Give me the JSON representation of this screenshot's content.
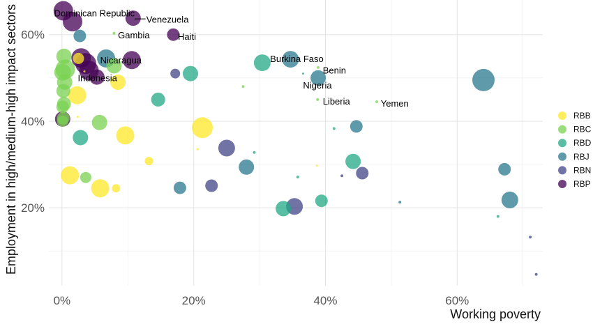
{
  "chart_data": {
    "type": "scatter",
    "title": "",
    "xlabel": "Working poverty",
    "ylabel": "Employment in high/medium-high impact sectors",
    "xlim": [
      -2,
      73
    ],
    "ylim": [
      2,
      68
    ],
    "x_ticks": [
      {
        "value": 0,
        "label": "0%"
      },
      {
        "value": 20,
        "label": "20%"
      },
      {
        "value": 40,
        "label": "40%"
      },
      {
        "value": 60,
        "label": "60%"
      }
    ],
    "y_ticks": [
      {
        "value": 20,
        "label": "20%"
      },
      {
        "value": 40,
        "label": "40%"
      },
      {
        "value": 60,
        "label": "60%"
      }
    ],
    "grid": true,
    "legend_position": "right",
    "series": [
      {
        "name": "RBB",
        "color": "#FDE725",
        "points": [
          {
            "x": 2.5,
            "y": 54.5,
            "size": 8
          },
          {
            "x": 8.5,
            "y": 49,
            "size": 11
          },
          {
            "x": 2.3,
            "y": 46,
            "size": 13
          },
          {
            "x": 21.3,
            "y": 38.5,
            "size": 15
          },
          {
            "x": 9.6,
            "y": 36.7,
            "size": 13
          },
          {
            "x": 13.2,
            "y": 30.8,
            "size": 6
          },
          {
            "x": 1.2,
            "y": 27.5,
            "size": 13
          },
          {
            "x": 5.8,
            "y": 24.5,
            "size": 13
          },
          {
            "x": 8.2,
            "y": 24.5,
            "size": 6
          },
          {
            "x": 2.4,
            "y": 41,
            "size": 1.5
          },
          {
            "x": 20.6,
            "y": 33.5,
            "size": 1.5
          },
          {
            "x": 38.7,
            "y": 29.7,
            "size": 1.5
          },
          {
            "x": 3.4,
            "y": 51.5,
            "size": 1.5
          }
        ]
      },
      {
        "name": "RBC",
        "color": "#7AD151",
        "points": [
          {
            "x": 0.3,
            "y": 55,
            "size": 11
          },
          {
            "x": 0.5,
            "y": 52,
            "size": 14
          },
          {
            "x": 0.1,
            "y": 51.3,
            "size": 12
          },
          {
            "x": 0.4,
            "y": 49,
            "size": 11
          },
          {
            "x": 0.2,
            "y": 47,
            "size": 10
          },
          {
            "x": 0.3,
            "y": 44,
            "size": 10
          },
          {
            "x": 0.1,
            "y": 43.3,
            "size": 9
          },
          {
            "x": 0.2,
            "y": 40.7,
            "size": 9
          },
          {
            "x": 0.1,
            "y": 40,
            "size": 8
          },
          {
            "x": 3.6,
            "y": 27,
            "size": 8
          },
          {
            "x": 5.7,
            "y": 39.7,
            "size": 11
          },
          {
            "x": 7.9,
            "y": 52.8,
            "size": 11
          },
          {
            "x": 7.9,
            "y": 60.3,
            "size": 2
          },
          {
            "x": 27.5,
            "y": 48,
            "size": 2
          },
          {
            "x": 38.8,
            "y": 45,
            "size": 2
          },
          {
            "x": 38.9,
            "y": 52.4,
            "size": 2
          },
          {
            "x": 47.8,
            "y": 44.5,
            "size": 2
          }
        ]
      },
      {
        "name": "RBD",
        "color": "#22A884",
        "points": [
          {
            "x": 30.4,
            "y": 53.5,
            "size": 12
          },
          {
            "x": 19.5,
            "y": 51,
            "size": 11
          },
          {
            "x": 14.6,
            "y": 45,
            "size": 10
          },
          {
            "x": 2.8,
            "y": 36.2,
            "size": 11
          },
          {
            "x": 44.2,
            "y": 30.7,
            "size": 11
          },
          {
            "x": 33.6,
            "y": 19.8,
            "size": 11
          },
          {
            "x": 39.4,
            "y": 21.6,
            "size": 9
          },
          {
            "x": 36.6,
            "y": 51,
            "size": 1.5
          },
          {
            "x": 29.2,
            "y": 32.8,
            "size": 2
          },
          {
            "x": 41.3,
            "y": 38.3,
            "size": 2
          },
          {
            "x": 35.8,
            "y": 27.1,
            "size": 2
          },
          {
            "x": 66.2,
            "y": 18,
            "size": 2
          }
        ]
      },
      {
        "name": "RBJ",
        "color": "#2A788E",
        "points": [
          {
            "x": 34.7,
            "y": 54.3,
            "size": 12
          },
          {
            "x": 38.9,
            "y": 50,
            "size": 11
          },
          {
            "x": 64,
            "y": 49.5,
            "size": 16
          },
          {
            "x": 44.7,
            "y": 38.8,
            "size": 9
          },
          {
            "x": 67.2,
            "y": 28.9,
            "size": 9
          },
          {
            "x": 68,
            "y": 21.8,
            "size": 12
          },
          {
            "x": 28,
            "y": 29.4,
            "size": 11
          },
          {
            "x": 17.9,
            "y": 24.6,
            "size": 9
          },
          {
            "x": 6.7,
            "y": 54.5,
            "size": 13
          },
          {
            "x": 2.7,
            "y": 59.7,
            "size": 9
          },
          {
            "x": 51.3,
            "y": 21.3,
            "size": 2
          }
        ]
      },
      {
        "name": "RBN",
        "color": "#414487",
        "points": [
          {
            "x": 25,
            "y": 33.8,
            "size": 12
          },
          {
            "x": 22.7,
            "y": 25.1,
            "size": 9
          },
          {
            "x": 35.3,
            "y": 20.3,
            "size": 12
          },
          {
            "x": 45.6,
            "y": 28,
            "size": 9
          },
          {
            "x": 17.2,
            "y": 51,
            "size": 7
          },
          {
            "x": 42.5,
            "y": 27.4,
            "size": 2
          },
          {
            "x": 71.1,
            "y": 13.2,
            "size": 2
          },
          {
            "x": 72,
            "y": 4.6,
            "size": 2
          }
        ]
      },
      {
        "name": "RBP",
        "color": "#440154",
        "points": [
          {
            "x": 0.2,
            "y": 65.5,
            "size": 14
          },
          {
            "x": 1.6,
            "y": 63,
            "size": 14
          },
          {
            "x": 10.8,
            "y": 63.8,
            "size": 11
          },
          {
            "x": 16.9,
            "y": 60,
            "size": 9
          },
          {
            "x": 2.9,
            "y": 54.6,
            "size": 14
          },
          {
            "x": 3.6,
            "y": 53.3,
            "size": 15
          },
          {
            "x": 4.1,
            "y": 51.7,
            "size": 14
          },
          {
            "x": 5.3,
            "y": 50.2,
            "size": 11
          },
          {
            "x": 10.6,
            "y": 54.1,
            "size": 13
          },
          {
            "x": 0.1,
            "y": 40.5,
            "size": 11
          }
        ]
      }
    ],
    "annotations": [
      {
        "text": "Dominican Republic",
        "x": 0.2,
        "y": 65.5,
        "label_x": -1.2,
        "label_y": 64.9,
        "anchor": "start"
      },
      {
        "text": "Venezuela",
        "x": 10.8,
        "y": 63.8,
        "label_x": 12.8,
        "label_y": 63.4,
        "anchor": "start",
        "leader": true
      },
      {
        "text": "Gambia",
        "x": 7.9,
        "y": 60.3,
        "label_x": 8.5,
        "label_y": 59.8,
        "anchor": "start"
      },
      {
        "text": "Haiti",
        "x": 16.9,
        "y": 60,
        "label_x": 17.6,
        "label_y": 59.5,
        "anchor": "start"
      },
      {
        "text": "Nicaragua",
        "x": 6.7,
        "y": 54.5,
        "label_x": 5.8,
        "label_y": 54,
        "anchor": "start"
      },
      {
        "text": "Indonesia",
        "x": 3.6,
        "y": 53.3,
        "label_x": 2.4,
        "label_y": 49.9,
        "anchor": "start"
      },
      {
        "text": "Burkina Faso",
        "x": 34.7,
        "y": 54.3,
        "label_x": 31.6,
        "label_y": 54.3,
        "anchor": "start"
      },
      {
        "text": "Benin",
        "x": 38.9,
        "y": 52.4,
        "label_x": 39.6,
        "label_y": 51.7,
        "anchor": "start"
      },
      {
        "text": "Nigeria",
        "x": 36.6,
        "y": 51,
        "label_x": 36.6,
        "label_y": 48.2,
        "anchor": "start"
      },
      {
        "text": "Liberia",
        "x": 38.8,
        "y": 45,
        "label_x": 39.6,
        "label_y": 44.5,
        "anchor": "start"
      },
      {
        "text": "Yemen",
        "x": 47.8,
        "y": 44.5,
        "label_x": 48.4,
        "label_y": 44.0,
        "anchor": "start"
      }
    ]
  }
}
